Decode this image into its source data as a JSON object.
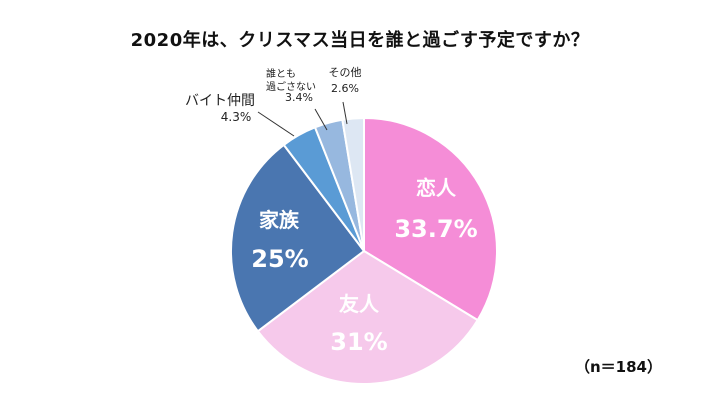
{
  "chart_data": {
    "type": "pie",
    "title": "2020年は、クリスマス当日を誰と過ごす予定ですか？",
    "unit": "%",
    "slices": [
      {
        "label": "恋人",
        "value": 33.7,
        "value_text": "33.7%",
        "color": "#F58DD7"
      },
      {
        "label": "友人",
        "value": 31,
        "value_text": "31%",
        "color": "#F6C9EB"
      },
      {
        "label": "家族",
        "value": 25,
        "value_text": "25%",
        "color": "#4A76B0"
      },
      {
        "label": "バイト仲間",
        "value": 4.3,
        "value_text": "4.3%",
        "color": "#5A9BD5"
      },
      {
        "label_lines": [
          "誰とも",
          "過ごさない"
        ],
        "value": 3.4,
        "value_text": "3.4%",
        "color": "#97B8DF"
      },
      {
        "label": "その他",
        "value": 2.6,
        "value_text": "2.6%",
        "color": "#DDE7F3"
      }
    ],
    "sample_size": "（n＝184）"
  }
}
